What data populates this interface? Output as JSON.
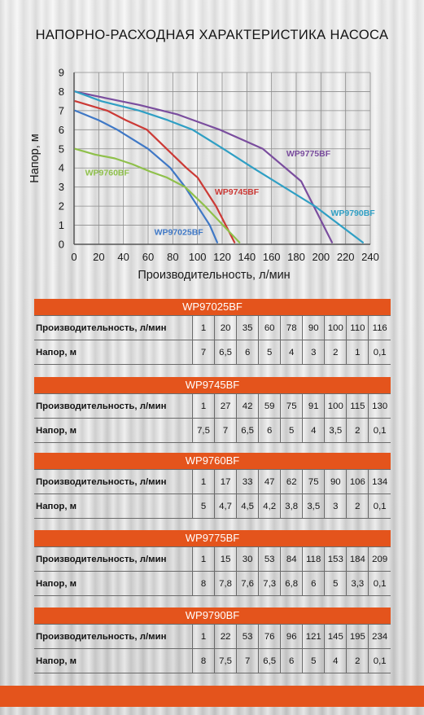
{
  "chart_data": {
    "type": "line",
    "title": "НАПОРНО-РАСХОДНАЯ ХАРАКТЕРИСТИКА НАСОСА",
    "xlabel": "Производительность, л/мин",
    "ylabel": "Напор, м",
    "xlim": [
      0,
      240
    ],
    "ylim": [
      0,
      9
    ],
    "xticks": [
      0,
      20,
      40,
      60,
      80,
      100,
      120,
      140,
      160,
      180,
      200,
      220,
      240
    ],
    "yticks": [
      0,
      1,
      2,
      3,
      4,
      5,
      6,
      7,
      8,
      9
    ],
    "grid": true,
    "series": [
      {
        "name": "WP97025BF",
        "color": "#3f78c6",
        "x": [
          1,
          20,
          35,
          60,
          78,
          90,
          100,
          110,
          116
        ],
        "y": [
          7,
          6.5,
          6,
          5,
          4,
          3,
          2,
          1,
          0.1
        ]
      },
      {
        "name": "WP9745BF",
        "color": "#cc3a36",
        "x": [
          1,
          27,
          42,
          59,
          75,
          91,
          100,
          115,
          130
        ],
        "y": [
          7.5,
          7,
          6.5,
          6,
          5,
          4,
          3.5,
          2,
          0.1
        ]
      },
      {
        "name": "WP9760BF",
        "color": "#8fc04b",
        "x": [
          1,
          17,
          33,
          47,
          62,
          75,
          90,
          106,
          134
        ],
        "y": [
          5,
          4.7,
          4.5,
          4.2,
          3.8,
          3.5,
          3,
          2,
          0.1
        ]
      },
      {
        "name": "WP9775BF",
        "color": "#7a4d9e",
        "x": [
          1,
          15,
          30,
          53,
          84,
          118,
          153,
          184,
          209
        ],
        "y": [
          8,
          7.8,
          7.6,
          7.3,
          6.8,
          6,
          5,
          3.3,
          0.1
        ]
      },
      {
        "name": "WP9790BF",
        "color": "#2f9fc4",
        "x": [
          1,
          22,
          53,
          76,
          96,
          121,
          145,
          195,
          234
        ],
        "y": [
          8,
          7.5,
          7,
          6.5,
          6,
          5,
          4,
          2,
          0.1
        ]
      }
    ],
    "annotations": [
      {
        "text": "WP9775BF",
        "x": 172,
        "y": 4.6
      },
      {
        "text": "WP9745BF",
        "x": 114,
        "y": 2.6
      },
      {
        "text": "WP9790BF",
        "x": 208,
        "y": 1.5
      },
      {
        "text": "WP9760BF",
        "x": 9,
        "y": 3.6
      },
      {
        "text": "WP97025BF",
        "x": 65,
        "y": 0.5
      }
    ]
  },
  "tables": [
    {
      "model": "WP97025BF",
      "flow_label": "Производительность, л/мин",
      "head_label": "Напор, м",
      "flow": [
        "1",
        "20",
        "35",
        "60",
        "78",
        "90",
        "100",
        "110",
        "116"
      ],
      "head": [
        "7",
        "6,5",
        "6",
        "5",
        "4",
        "3",
        "2",
        "1",
        "0,1"
      ]
    },
    {
      "model": "WP9745BF",
      "flow_label": "Производительность, л/мин",
      "head_label": "Напор, м",
      "flow": [
        "1",
        "27",
        "42",
        "59",
        "75",
        "91",
        "100",
        "115",
        "130"
      ],
      "head": [
        "7,5",
        "7",
        "6,5",
        "6",
        "5",
        "4",
        "3,5",
        "2",
        "0,1"
      ]
    },
    {
      "model": "WP9760BF",
      "flow_label": "Производительность, л/мин",
      "head_label": "Напор, м",
      "flow": [
        "1",
        "17",
        "33",
        "47",
        "62",
        "75",
        "90",
        "106",
        "134"
      ],
      "head": [
        "5",
        "4,7",
        "4,5",
        "4,2",
        "3,8",
        "3,5",
        "3",
        "2",
        "0,1"
      ]
    },
    {
      "model": "WP9775BF",
      "flow_label": "Производительность, л/мин",
      "head_label": "Напор, м",
      "flow": [
        "1",
        "15",
        "30",
        "53",
        "84",
        "118",
        "153",
        "184",
        "209"
      ],
      "head": [
        "8",
        "7,8",
        "7,6",
        "7,3",
        "6,8",
        "6",
        "5",
        "3,3",
        "0,1"
      ]
    },
    {
      "model": "WP9790BF",
      "flow_label": "Производительность, л/мин",
      "head_label": "Напор, м",
      "flow": [
        "1",
        "22",
        "53",
        "76",
        "96",
        "121",
        "145",
        "195",
        "234"
      ],
      "head": [
        "8",
        "7,5",
        "7",
        "6,5",
        "6",
        "5",
        "4",
        "2",
        "0,1"
      ]
    }
  ],
  "colors": {
    "accent": "#e4541c",
    "grid": "#8c8c8c",
    "axis": "#555555"
  }
}
